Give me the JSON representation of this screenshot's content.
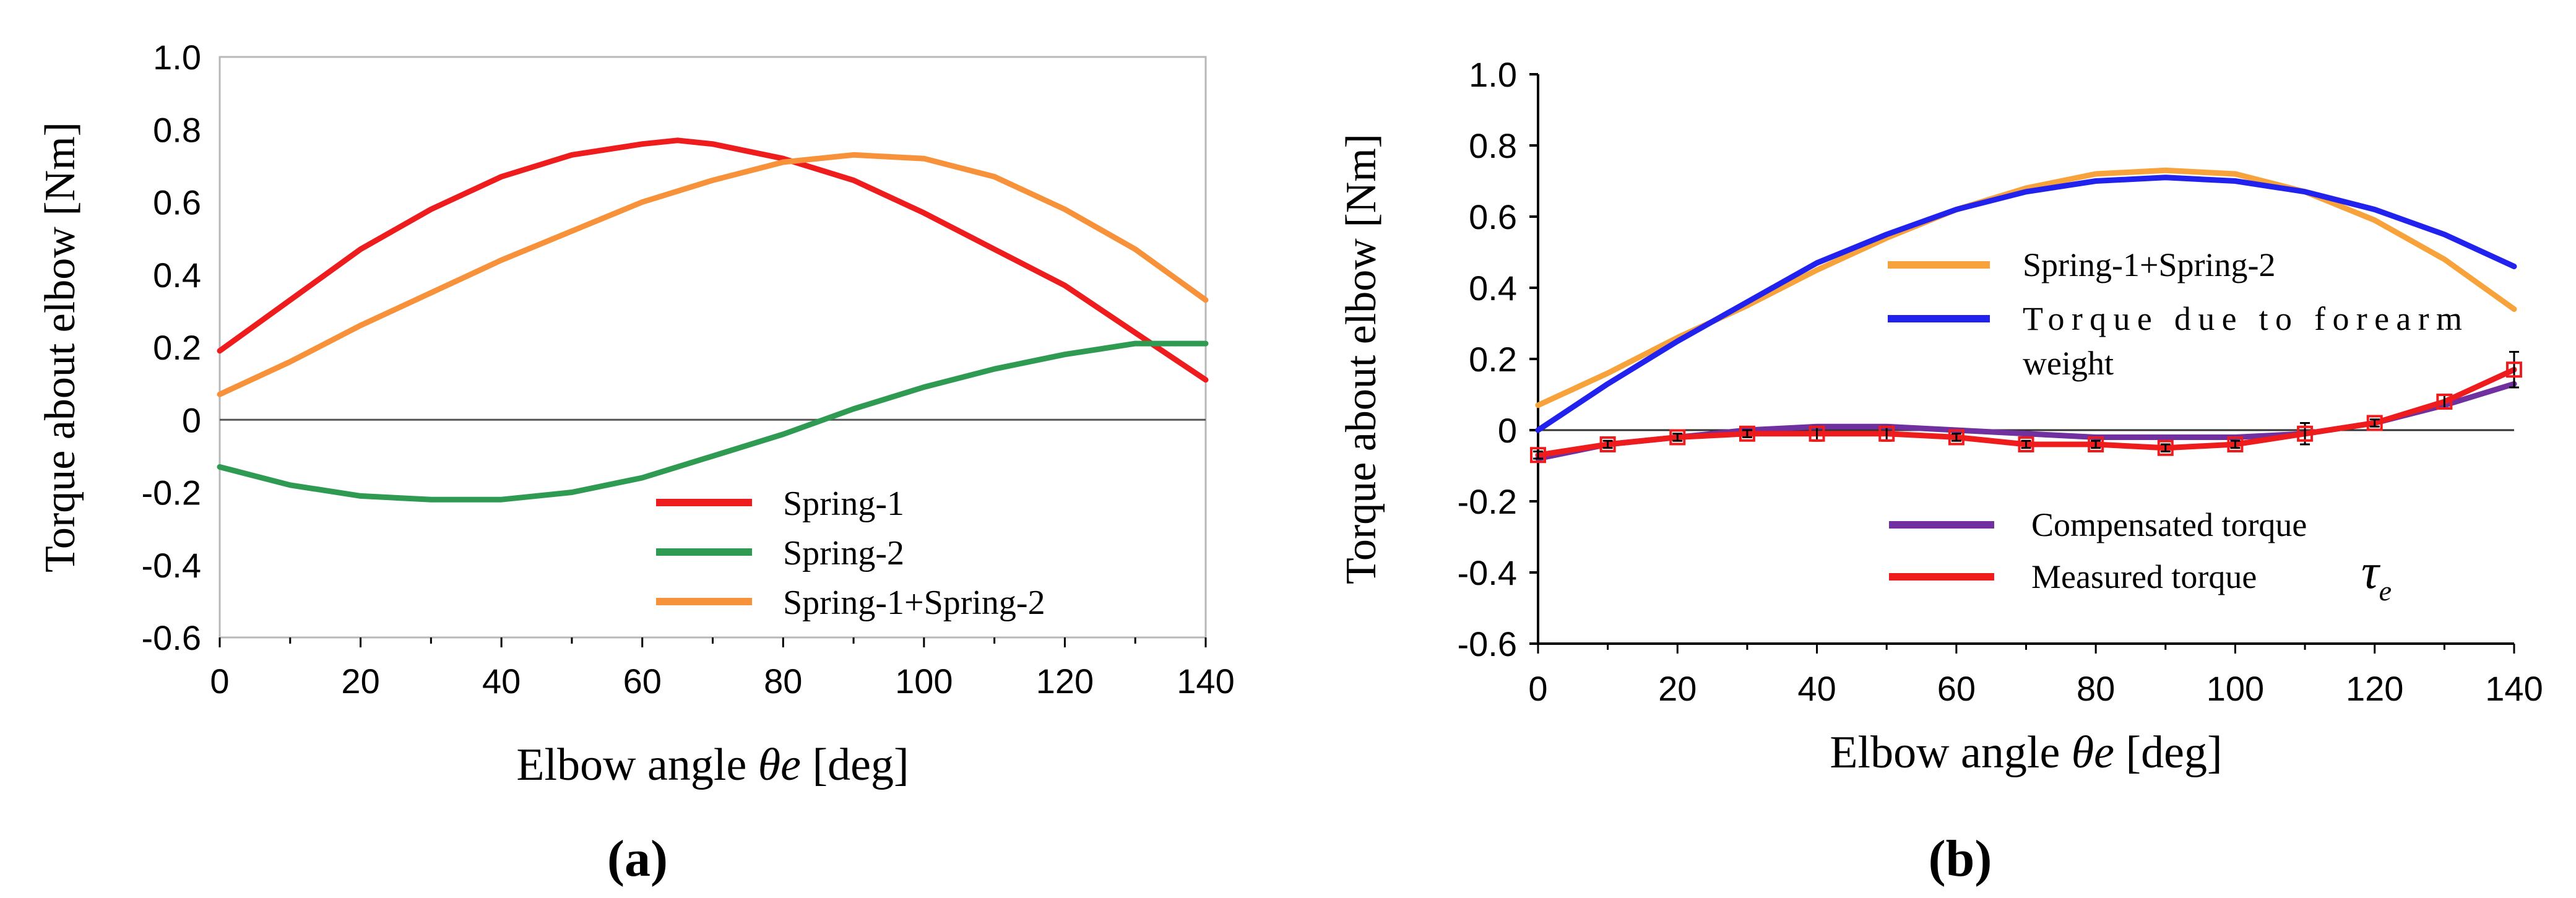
{
  "chart_data": [
    {
      "type": "line",
      "panel_label": "(a)",
      "xlabel": "Elbow angle",
      "xlabel_symbol": "θe",
      "xlabel_unit": "[deg]",
      "ylabel": "Torque about elbow [Nm]",
      "xlim": [
        0,
        140
      ],
      "ylim": [
        -0.6,
        1.0
      ],
      "x_ticks": [
        "0",
        "20",
        "40",
        "60",
        "80",
        "100",
        "120",
        "140"
      ],
      "y_ticks": [
        "-0.6",
        "-0.4",
        "-0.2",
        "0",
        "0.2",
        "0.4",
        "0.6",
        "0.8",
        "1.0"
      ],
      "legend_position": "bottom-right",
      "series": [
        {
          "name": "Spring-1",
          "color": "#ee1c1c",
          "x": [
            0,
            10,
            20,
            30,
            40,
            50,
            60,
            65,
            70,
            80,
            90,
            100,
            110,
            120,
            130,
            140
          ],
          "y": [
            0.19,
            0.33,
            0.47,
            0.58,
            0.67,
            0.73,
            0.76,
            0.77,
            0.76,
            0.72,
            0.66,
            0.57,
            0.47,
            0.37,
            0.24,
            0.11
          ]
        },
        {
          "name": "Spring-2",
          "color": "#2e9a52",
          "x": [
            0,
            10,
            20,
            30,
            35,
            40,
            50,
            60,
            70,
            80,
            90,
            100,
            110,
            120,
            130,
            140
          ],
          "y": [
            -0.13,
            -0.18,
            -0.21,
            -0.22,
            -0.22,
            -0.22,
            -0.2,
            -0.16,
            -0.1,
            -0.04,
            0.03,
            0.09,
            0.14,
            0.18,
            0.21,
            0.21
          ]
        },
        {
          "name": "Spring-1+Spring-2",
          "color": "#f7923a",
          "x": [
            0,
            10,
            20,
            30,
            40,
            50,
            60,
            70,
            80,
            90,
            100,
            110,
            120,
            130,
            140
          ],
          "y": [
            0.07,
            0.16,
            0.26,
            0.35,
            0.44,
            0.52,
            0.6,
            0.66,
            0.71,
            0.73,
            0.72,
            0.67,
            0.58,
            0.47,
            0.33
          ]
        }
      ]
    },
    {
      "type": "line",
      "panel_label": "(b)",
      "xlabel": "Elbow angle",
      "xlabel_symbol": "θe",
      "xlabel_unit": "[deg]",
      "ylabel": "Torque about elbow [Nm]",
      "xlim": [
        0,
        140
      ],
      "ylim": [
        -0.6,
        1.0
      ],
      "x_ticks": [
        "0",
        "20",
        "40",
        "60",
        "80",
        "100",
        "120",
        "140"
      ],
      "y_ticks": [
        "-0.6",
        "-0.4",
        "-0.2",
        "0",
        "0.2",
        "0.4",
        "0.6",
        "0.8",
        "1.0"
      ],
      "legend_upper": [
        "Spring-1+Spring-2",
        "Torque due to forearm weight"
      ],
      "legend_lower": [
        "Compensated torque",
        "Measured torque"
      ],
      "measured_symbol": "τe",
      "series": [
        {
          "name": "Spring-1+Spring-2",
          "color": "#f7a23a",
          "x": [
            0,
            10,
            20,
            30,
            40,
            50,
            60,
            70,
            80,
            90,
            100,
            110,
            120,
            130,
            140
          ],
          "y": [
            0.07,
            0.16,
            0.26,
            0.35,
            0.45,
            0.54,
            0.62,
            0.68,
            0.72,
            0.73,
            0.72,
            0.67,
            0.59,
            0.48,
            0.34
          ]
        },
        {
          "name": "Torque due to forearm weight",
          "color": "#2222ee",
          "x": [
            0,
            10,
            20,
            30,
            40,
            50,
            60,
            70,
            80,
            90,
            100,
            110,
            120,
            130,
            140
          ],
          "y": [
            0.0,
            0.13,
            0.25,
            0.36,
            0.47,
            0.55,
            0.62,
            0.67,
            0.7,
            0.71,
            0.7,
            0.67,
            0.62,
            0.55,
            0.46
          ]
        },
        {
          "name": "Compensated torque",
          "color": "#7030a0",
          "x": [
            0,
            10,
            20,
            30,
            40,
            50,
            60,
            70,
            80,
            90,
            100,
            110,
            120,
            130,
            140
          ],
          "y": [
            -0.08,
            -0.04,
            -0.02,
            0.0,
            0.01,
            0.01,
            0.0,
            -0.01,
            -0.02,
            -0.02,
            -0.02,
            -0.01,
            0.02,
            0.07,
            0.13
          ]
        },
        {
          "name": "Measured torque",
          "color": "#ee1c1c",
          "x": [
            0,
            10,
            20,
            30,
            40,
            50,
            60,
            70,
            80,
            90,
            100,
            110,
            120,
            130,
            140
          ],
          "y": [
            -0.07,
            -0.04,
            -0.02,
            -0.01,
            -0.01,
            -0.01,
            -0.02,
            -0.04,
            -0.04,
            -0.05,
            -0.04,
            -0.01,
            0.02,
            0.08,
            0.17
          ],
          "error": [
            0.01,
            0.01,
            0.01,
            0.01,
            0.02,
            0.02,
            0.01,
            0.01,
            0.01,
            0.01,
            0.01,
            0.03,
            0.01,
            0.02,
            0.05
          ],
          "markers": "open-square"
        }
      ]
    }
  ]
}
